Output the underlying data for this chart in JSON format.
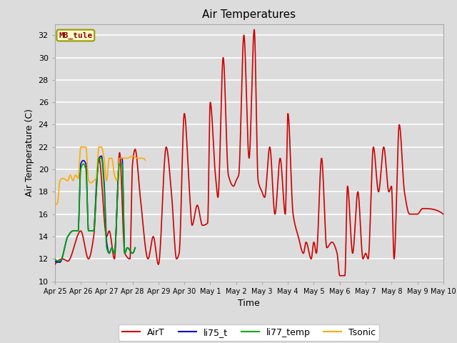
{
  "title": "Air Temperatures",
  "xlabel": "Time",
  "ylabel": "Air Temperature (C)",
  "ylim": [
    10,
    33
  ],
  "yticks": [
    10,
    12,
    14,
    16,
    18,
    20,
    22,
    24,
    26,
    28,
    30,
    32
  ],
  "background_color": "#dcdcdc",
  "plot_bg_color": "#dcdcdc",
  "grid_color": "white",
  "annotation_text": "MB_tule",
  "annotation_color": "#8b0000",
  "annotation_bg": "#ffffcc",
  "series_colors": {
    "AirT": "#cc0000",
    "li75_t": "#0000cc",
    "li77_temp": "#00aa00",
    "Tsonic": "#ffaa00"
  },
  "tick_labels": [
    "Apr 25",
    "Apr 26",
    "Apr 27",
    "Apr 28",
    "Apr 29",
    "Apr 30",
    "May 1",
    "May 2",
    "May 3",
    "May 4",
    "May 5",
    "May 6",
    "May 7",
    "May 8",
    "May 9",
    "May 10"
  ],
  "airt_keypoints": [
    [
      0.0,
      11.5
    ],
    [
      0.3,
      12.0
    ],
    [
      0.5,
      11.8
    ],
    [
      1.0,
      14.5
    ],
    [
      1.3,
      12.0
    ],
    [
      1.5,
      14.0
    ],
    [
      1.7,
      21.0
    ],
    [
      2.0,
      14.0
    ],
    [
      2.1,
      14.5
    ],
    [
      2.3,
      12.0
    ],
    [
      2.5,
      21.5
    ],
    [
      2.7,
      12.5
    ],
    [
      2.9,
      12.0
    ],
    [
      3.0,
      20.5
    ],
    [
      3.1,
      21.8
    ],
    [
      3.3,
      17.5
    ],
    [
      3.6,
      12.0
    ],
    [
      3.8,
      14.0
    ],
    [
      4.0,
      11.5
    ],
    [
      4.3,
      22.0
    ],
    [
      4.5,
      18.0
    ],
    [
      4.7,
      12.0
    ],
    [
      4.8,
      12.5
    ],
    [
      5.0,
      25.0
    ],
    [
      5.2,
      18.0
    ],
    [
      5.3,
      15.0
    ],
    [
      5.5,
      16.8
    ],
    [
      5.7,
      15.0
    ],
    [
      5.9,
      15.2
    ],
    [
      6.0,
      26.0
    ],
    [
      6.2,
      19.5
    ],
    [
      6.3,
      17.5
    ],
    [
      6.5,
      30.0
    ],
    [
      6.7,
      19.5
    ],
    [
      6.9,
      18.5
    ],
    [
      7.0,
      19.0
    ],
    [
      7.1,
      19.5
    ],
    [
      7.3,
      32.0
    ],
    [
      7.5,
      21.0
    ],
    [
      7.7,
      32.5
    ],
    [
      7.85,
      19.0
    ],
    [
      8.0,
      18.0
    ],
    [
      8.1,
      17.5
    ],
    [
      8.3,
      22.0
    ],
    [
      8.5,
      16.0
    ],
    [
      8.7,
      21.0
    ],
    [
      8.9,
      16.0
    ],
    [
      9.0,
      25.0
    ],
    [
      9.2,
      16.0
    ],
    [
      9.4,
      14.0
    ],
    [
      9.6,
      12.5
    ],
    [
      9.7,
      13.5
    ],
    [
      9.9,
      12.0
    ],
    [
      10.0,
      13.5
    ],
    [
      10.1,
      12.5
    ],
    [
      10.3,
      21.0
    ],
    [
      10.5,
      13.0
    ],
    [
      10.7,
      13.5
    ],
    [
      10.9,
      12.5
    ],
    [
      11.0,
      10.5
    ],
    [
      11.2,
      10.5
    ],
    [
      11.3,
      18.5
    ],
    [
      11.5,
      12.5
    ],
    [
      11.7,
      18.0
    ],
    [
      11.9,
      12.0
    ],
    [
      12.0,
      12.5
    ],
    [
      12.1,
      12.0
    ],
    [
      12.3,
      22.0
    ],
    [
      12.5,
      18.0
    ],
    [
      12.7,
      22.0
    ],
    [
      12.9,
      18.0
    ],
    [
      13.0,
      18.5
    ],
    [
      13.1,
      12.0
    ],
    [
      13.3,
      24.0
    ],
    [
      13.5,
      18.0
    ],
    [
      13.7,
      16.0
    ],
    [
      13.9,
      16.0
    ],
    [
      14.0,
      16.0
    ],
    [
      14.2,
      16.5
    ],
    [
      15.0,
      16.0
    ]
  ],
  "li75_keypoints": [
    [
      0.0,
      11.8
    ],
    [
      0.2,
      11.7
    ],
    [
      0.5,
      14.0
    ],
    [
      0.7,
      14.5
    ],
    [
      0.9,
      14.5
    ],
    [
      1.0,
      20.5
    ],
    [
      1.1,
      20.8
    ],
    [
      1.2,
      20.5
    ],
    [
      1.3,
      14.5
    ],
    [
      1.5,
      14.5
    ],
    [
      1.6,
      18.5
    ],
    [
      1.7,
      21.0
    ],
    [
      1.8,
      21.2
    ],
    [
      1.9,
      19.0
    ],
    [
      2.0,
      13.5
    ],
    [
      2.1,
      12.5
    ],
    [
      2.2,
      13.0
    ],
    [
      2.3,
      12.5
    ],
    [
      2.5,
      21.0
    ],
    [
      2.6,
      21.0
    ],
    [
      2.7,
      12.5
    ],
    [
      2.8,
      13.0
    ],
    [
      3.0,
      12.5
    ],
    [
      3.1,
      13.0
    ]
  ],
  "li77_keypoints": [
    [
      0.0,
      12.0
    ],
    [
      0.2,
      11.8
    ],
    [
      0.5,
      14.0
    ],
    [
      0.7,
      14.5
    ],
    [
      0.9,
      14.5
    ],
    [
      1.0,
      20.0
    ],
    [
      1.1,
      20.5
    ],
    [
      1.2,
      20.0
    ],
    [
      1.3,
      14.5
    ],
    [
      1.5,
      14.5
    ],
    [
      1.6,
      18.0
    ],
    [
      1.7,
      21.0
    ],
    [
      1.8,
      21.0
    ],
    [
      1.9,
      18.5
    ],
    [
      2.0,
      13.0
    ],
    [
      2.1,
      12.5
    ],
    [
      2.2,
      13.0
    ],
    [
      2.3,
      12.5
    ],
    [
      2.5,
      20.5
    ],
    [
      2.6,
      20.5
    ],
    [
      2.7,
      12.5
    ],
    [
      2.8,
      13.0
    ],
    [
      3.0,
      12.5
    ],
    [
      3.1,
      13.0
    ]
  ],
  "tsonic_keypoints": [
    [
      0.0,
      16.8
    ],
    [
      0.1,
      17.0
    ],
    [
      0.2,
      19.0
    ],
    [
      0.3,
      19.2
    ],
    [
      0.5,
      19.0
    ],
    [
      0.6,
      19.5
    ],
    [
      0.7,
      19.0
    ],
    [
      0.8,
      19.5
    ],
    [
      0.9,
      19.2
    ],
    [
      1.0,
      22.0
    ],
    [
      1.1,
      22.0
    ],
    [
      1.2,
      22.0
    ],
    [
      1.3,
      19.0
    ],
    [
      1.4,
      18.8
    ],
    [
      1.5,
      19.0
    ],
    [
      1.6,
      19.2
    ],
    [
      1.7,
      22.0
    ],
    [
      1.8,
      22.0
    ],
    [
      1.9,
      21.0
    ],
    [
      2.0,
      19.0
    ],
    [
      2.1,
      21.0
    ],
    [
      2.2,
      21.0
    ],
    [
      2.3,
      19.5
    ],
    [
      2.4,
      19.0
    ],
    [
      2.5,
      21.0
    ],
    [
      2.7,
      21.0
    ],
    [
      2.8,
      21.0
    ],
    [
      3.0,
      21.2
    ],
    [
      3.2,
      21.0
    ],
    [
      3.4,
      21.0
    ],
    [
      3.5,
      20.8
    ]
  ]
}
